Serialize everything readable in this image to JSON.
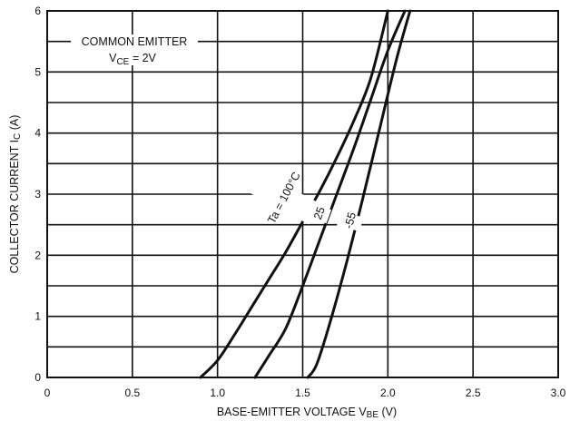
{
  "chart_data": {
    "type": "line",
    "title": "",
    "xlabel": "BASE-EMITTER VOLTAGE V",
    "xlabel_sub": "BE",
    "xlabel_unit": " (V)",
    "ylabel": "COLLECTOR CURRENT I",
    "ylabel_sub": "C",
    "ylabel_unit": " (A)",
    "xlim": [
      0,
      3.0
    ],
    "ylim": [
      0,
      6
    ],
    "x_ticks": [
      0,
      0.5,
      1.0,
      1.5,
      2.0,
      2.5,
      3.0
    ],
    "x_tick_labels": [
      "0",
      "0.5",
      "1.0",
      "1.5",
      "2.0",
      "2.5",
      "3.0"
    ],
    "y_ticks": [
      0,
      1,
      2,
      3,
      4,
      5,
      6
    ],
    "y_tick_labels": [
      "0",
      "1",
      "2",
      "3",
      "4",
      "5",
      "6"
    ],
    "x_grid": [
      0,
      0.5,
      1.0,
      1.5,
      2.0,
      2.5,
      3.0
    ],
    "y_grid": [
      0,
      0.5,
      1,
      1.5,
      2,
      2.5,
      3,
      3.5,
      4,
      4.5,
      5,
      5.5,
      6
    ],
    "grid": true,
    "annotation": {
      "line1": "COMMON EMITTER",
      "line2_main": "V",
      "line2_sub": "CE",
      "line2_rest": " = 2V"
    },
    "series": [
      {
        "name": "Ta = 100°C",
        "x": [
          0.9,
          1.0,
          1.1,
          1.2,
          1.3,
          1.4,
          1.5,
          1.6,
          1.7,
          1.8,
          1.9,
          2.0
        ],
        "y": [
          0,
          0.28,
          0.7,
          1.15,
          1.6,
          2.05,
          2.55,
          3.05,
          3.6,
          4.2,
          4.9,
          6.0
        ]
      },
      {
        "name": "25",
        "x": [
          1.22,
          1.3,
          1.4,
          1.5,
          1.6,
          1.7,
          1.8,
          1.9,
          2.0,
          2.1
        ],
        "y": [
          0,
          0.35,
          0.8,
          1.5,
          2.25,
          3.0,
          3.75,
          4.55,
          5.35,
          6.0
        ]
      },
      {
        "name": "-55",
        "x": [
          1.53,
          1.58,
          1.65,
          1.75,
          1.85,
          1.95,
          2.05,
          2.13
        ],
        "y": [
          0,
          0.2,
          0.8,
          1.8,
          2.9,
          4.05,
          5.2,
          6.0
        ]
      }
    ]
  }
}
